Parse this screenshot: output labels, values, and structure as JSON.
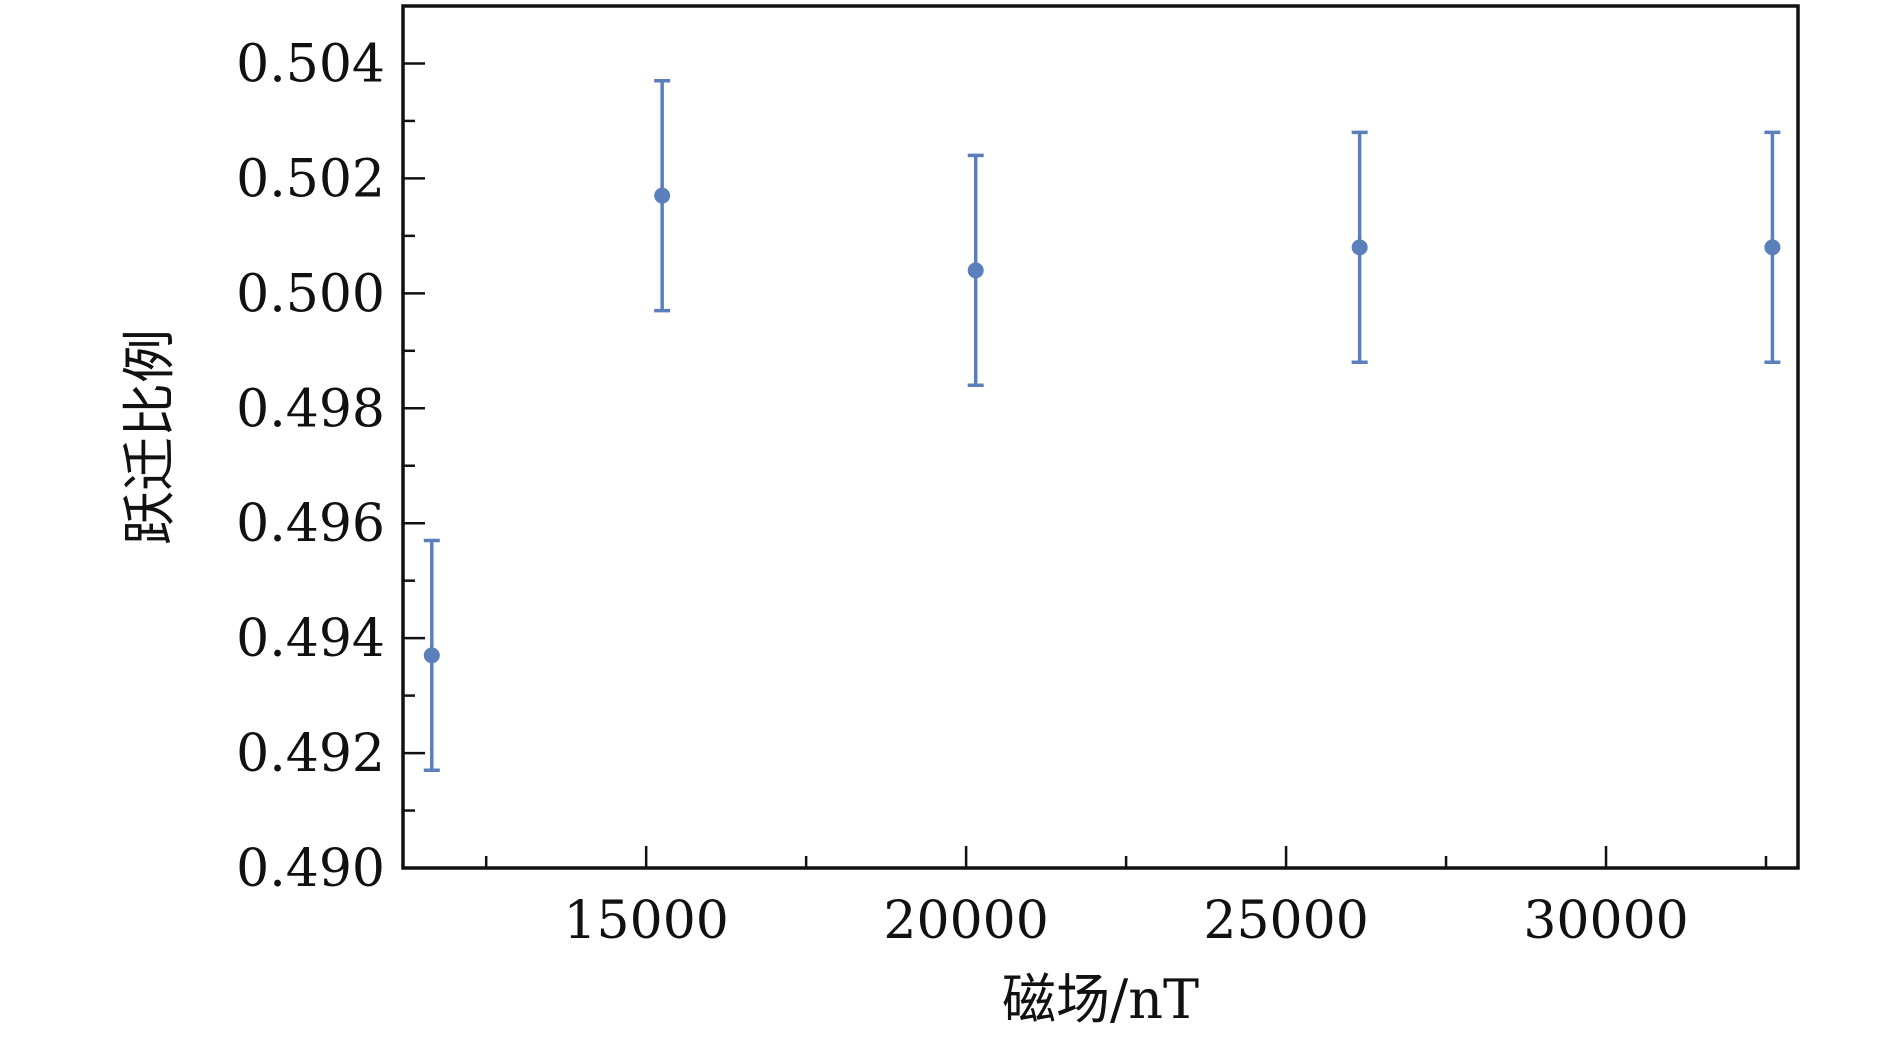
{
  "chart_data": {
    "type": "scatter",
    "xlabel": "磁场/nT",
    "ylabel": "跃迁比例",
    "xlim": [
      11200,
      33000
    ],
    "ylim": [
      0.49,
      0.505
    ],
    "x_ticks": [
      15000,
      20000,
      25000,
      30000
    ],
    "x_tick_labels": [
      "15000",
      "20000",
      "25000",
      "30000"
    ],
    "x_minor_ticks": [
      12500,
      17500,
      22500,
      27500,
      32500
    ],
    "y_ticks": [
      0.49,
      0.492,
      0.494,
      0.496,
      0.498,
      0.5,
      0.502,
      0.504
    ],
    "y_tick_labels": [
      "0.490",
      "0.492",
      "0.494",
      "0.496",
      "0.498",
      "0.500",
      "0.502",
      "0.504"
    ],
    "y_minor_ticks": [
      0.491,
      0.493,
      0.495,
      0.497,
      0.499,
      0.501,
      0.503
    ],
    "grid": false,
    "marker_color": "#5b7fba",
    "points": [
      {
        "x": 11650,
        "y": 0.4937,
        "yerr": 0.002
      },
      {
        "x": 15250,
        "y": 0.5017,
        "yerr": 0.002
      },
      {
        "x": 20150,
        "y": 0.5004,
        "yerr": 0.002
      },
      {
        "x": 26150,
        "y": 0.5008,
        "yerr": 0.002
      },
      {
        "x": 32600,
        "y": 0.5008,
        "yerr": 0.002
      }
    ]
  }
}
